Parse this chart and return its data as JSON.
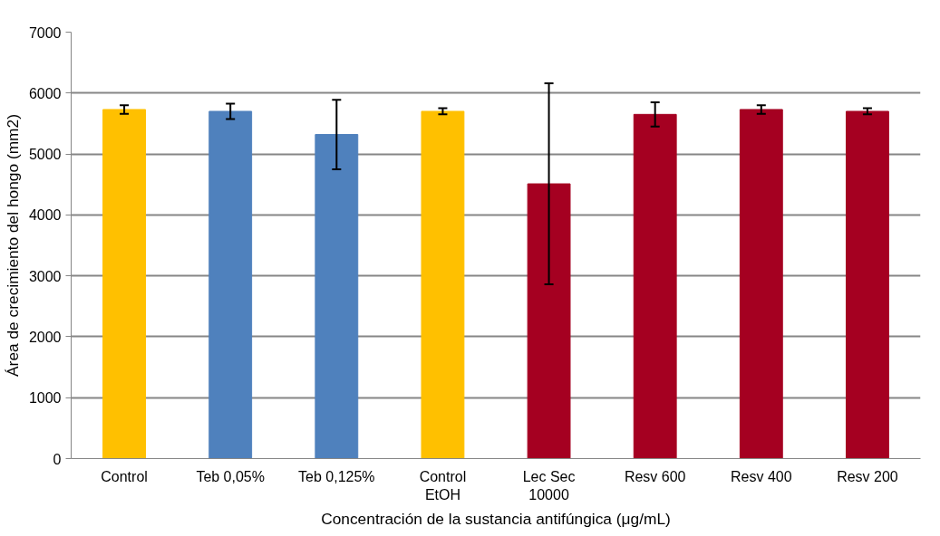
{
  "chart_data": {
    "type": "bar",
    "categories": [
      "Control",
      "Teb 0,05%",
      "Teb 0,125%",
      "Control\nEtOH",
      "Lec Sec\n10000",
      "Resv 600",
      "Resv 400",
      "Resv 200"
    ],
    "values": [
      5730,
      5700,
      5320,
      5700,
      4510,
      5650,
      5730,
      5700
    ],
    "errors": [
      70,
      125,
      570,
      50,
      1650,
      200,
      70,
      50
    ],
    "colors": [
      "#ffc000",
      "#4f81bd",
      "#4f81bd",
      "#ffc000",
      "#a50021",
      "#a50021",
      "#a50021",
      "#a50021"
    ],
    "xlabel": "Concentración de la sustancia antifúngica (μg/mL)",
    "ylabel": "Área de crecimiento del hongo (mm2)",
    "ylim": [
      0,
      7000
    ],
    "yticks": [
      0,
      1000,
      2000,
      3000,
      4000,
      5000,
      6000,
      7000
    ],
    "grid": "y"
  }
}
